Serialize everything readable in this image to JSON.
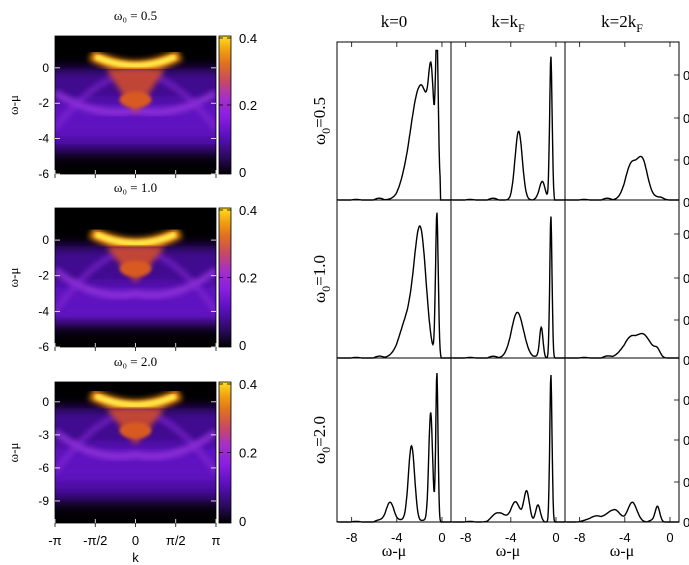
{
  "chart_data": [
    {
      "type": "heatmap",
      "title": "ω₀ = 0.5",
      "ylabel": "ω-μ",
      "xlabel": "",
      "x_ticks": [
        "",
        "",
        "",
        "",
        ""
      ],
      "y_ticks": [
        0,
        -2,
        -4,
        -6
      ],
      "ylim": [
        -6,
        1.8
      ],
      "colorbar_ticks": [
        "0.4",
        "0.2",
        "0"
      ],
      "colorbar_range": [
        0,
        0.4
      ],
      "colormap": [
        "#000000",
        "#2a0a5e",
        "#5c10c0",
        "#8a1fe0",
        "#a52fc8",
        "#c84a60",
        "#e07020",
        "#f0a010",
        "#ffe020"
      ],
      "features": {
        "top_band_center": 0.3,
        "top_band_weight": 0.4,
        "second_band_center": -1.8,
        "second_band_weight": 0.25,
        "lower_ghost_band": -2.4
      }
    },
    {
      "type": "heatmap",
      "title": "ω₀ = 1.0",
      "ylabel": "ω-μ",
      "xlabel": "",
      "x_ticks": [
        "",
        "",
        "",
        "",
        ""
      ],
      "y_ticks": [
        0,
        -2,
        -4,
        -6
      ],
      "ylim": [
        -6,
        1.8
      ],
      "colorbar_ticks": [
        "0.4",
        "0.2",
        "0"
      ],
      "colorbar_range": [
        0,
        0.4
      ],
      "features": {
        "top_band_center": 0.0,
        "top_band_weight": 0.4,
        "second_band_center": -1.6,
        "second_band_weight": 0.28,
        "lower_ghost_band": -3.0
      }
    },
    {
      "type": "heatmap",
      "title": "ω₀ = 2.0",
      "ylabel": "ω-μ",
      "xlabel": "k",
      "x_ticks": [
        "-π",
        "-π/2",
        "0",
        "π/2",
        "π"
      ],
      "y_ticks": [
        0,
        -3,
        -6,
        -9
      ],
      "ylim": [
        -11,
        1.8
      ],
      "colorbar_ticks": [
        "0.4",
        "0.2",
        "0"
      ],
      "colorbar_range": [
        0,
        0.4
      ],
      "features": {
        "top_band_center": 0.0,
        "top_band_weight": 0.4,
        "second_band_center": -2.6,
        "second_band_weight": 0.2,
        "lower_ghost_band": -4.8
      }
    },
    {
      "type": "line",
      "grid_rows": [
        "ω₀=0.5",
        "ω₀=1.0",
        "ω₀=2.0"
      ],
      "grid_cols": [
        "k=0",
        "k=k_F",
        "k=2k_F"
      ],
      "col_titles": [
        {
          "main": "k=0",
          "sub": ""
        },
        {
          "main": "k=k",
          "sub": "F"
        },
        {
          "main": "k=2k",
          "sub": "F"
        }
      ],
      "row_labels": [
        {
          "main": "ω",
          "sub": "0",
          "rest": "=0.5"
        },
        {
          "main": "ω",
          "sub": "0",
          "rest": "=1.0"
        },
        {
          "main": "ω",
          "sub": "0",
          "rest": "=2.0"
        }
      ],
      "xlabel": "ω-μ",
      "x_ticks": [
        -8,
        -4,
        0
      ],
      "xlim": [
        -9.3,
        0.8
      ],
      "ylim": [
        0,
        1.05
      ],
      "right_tick_labels": [
        "0.",
        "0.",
        "0.",
        "0."
      ],
      "panels": [
        [
          {
            "peaks": [
              [
                -1.9,
                0.78,
                0.9
              ],
              [
                -0.95,
                0.48,
                0.22
              ],
              [
                -0.45,
                0.97,
                0.11
              ]
            ],
            "cutoff": -0.15,
            "floor": [
              -9.0,
              -3.0
            ]
          },
          {
            "peaks": [
              [
                -3.3,
                0.46,
                0.32
              ],
              [
                -1.2,
                0.12,
                0.25
              ],
              [
                -0.45,
                0.98,
                0.11
              ]
            ],
            "cutoff": -0.15,
            "floor": [
              -9.0,
              -3.0
            ]
          },
          {
            "peaks": [
              [
                -3.4,
                0.23,
                0.55
              ],
              [
                -2.4,
                0.24,
                0.45
              ],
              [
                -0.9,
                0.02,
                0.3
              ]
            ],
            "cutoff": -0.1,
            "floor": [
              -9.0,
              -3.0
            ]
          }
        ],
        [
          {
            "peaks": [
              [
                -1.9,
                0.73,
                0.5
              ],
              [
                -2.8,
                0.3,
                0.8
              ],
              [
                -0.45,
                0.98,
                0.12
              ]
            ],
            "cutoff": -0.1,
            "floor": [
              -9.0,
              -3.0
            ]
          },
          {
            "peaks": [
              [
                -3.4,
                0.3,
                0.55
              ],
              [
                -1.3,
                0.2,
                0.15
              ],
              [
                -0.45,
                0.97,
                0.1
              ]
            ],
            "cutoff": -0.1,
            "floor": [
              -9.0,
              -3.0
            ]
          },
          {
            "peaks": [
              [
                -3.4,
                0.13,
                0.75
              ],
              [
                -2.2,
                0.12,
                0.55
              ],
              [
                -1.1,
                0.05,
                0.25
              ]
            ],
            "cutoff": -0.05,
            "floor": [
              -9.0,
              -3.0
            ]
          }
        ],
        [
          {
            "peaks": [
              [
                -4.6,
                0.13,
                0.35
              ],
              [
                -2.7,
                0.5,
                0.28
              ],
              [
                -1.0,
                0.72,
                0.17
              ],
              [
                -0.45,
                0.98,
                0.1
              ]
            ],
            "cutoff": -0.1,
            "floor": [
              -9.0,
              -3.0
            ]
          },
          {
            "peaks": [
              [
                -5.0,
                0.06,
                0.5
              ],
              [
                -3.6,
                0.12,
                0.4
              ],
              [
                -2.6,
                0.2,
                0.25
              ],
              [
                -1.6,
                0.1,
                0.2
              ],
              [
                -0.45,
                0.97,
                0.1
              ]
            ],
            "cutoff": -0.1,
            "floor": [
              -9.0,
              -3.0
            ]
          },
          {
            "peaks": [
              [
                -6.5,
                0.04,
                0.6
              ],
              [
                -4.9,
                0.08,
                0.5
              ],
              [
                -3.3,
                0.12,
                0.4
              ],
              [
                -1.1,
                0.1,
                0.2
              ]
            ],
            "cutoff": -0.05,
            "floor": [
              -9.0,
              -3.0
            ]
          }
        ]
      ]
    }
  ]
}
